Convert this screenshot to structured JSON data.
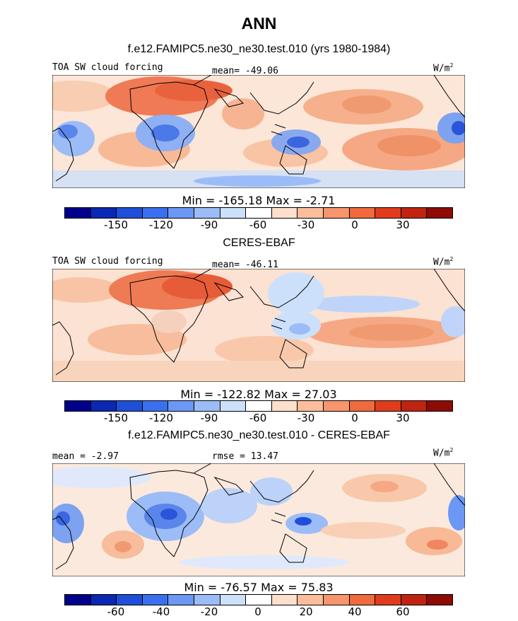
{
  "title": "ANN",
  "panels": [
    {
      "title": "f.e12.FAMIPC5.ne30_ne30.test.010 (yrs 1980-1984)",
      "left_label": "TOA SW cloud forcing",
      "center_label": "mean= -49.06",
      "units": "W/m",
      "units_exp": "2",
      "minmax": "Min = -165.18 Max =  -2.71",
      "ticks": [
        "-150",
        "-120",
        "-90",
        "-60",
        "-30",
        "0",
        "30"
      ]
    },
    {
      "title": "CERES-EBAF",
      "left_label": "TOA SW cloud forcing",
      "center_label": "mean= -46.11",
      "units": "W/m",
      "units_exp": "2",
      "minmax": "Min = -122.82 Max =  27.03",
      "ticks": [
        "-150",
        "-120",
        "-90",
        "-60",
        "-30",
        "0",
        "30"
      ]
    },
    {
      "title": "f.e12.FAMIPC5.ne30_ne30.test.010 - CERES-EBAF",
      "left_label": "mean =  -2.97",
      "center_label": "rmse =  13.47",
      "units": "W/m",
      "units_exp": "2",
      "minmax": "Min = -76.57 Max =  75.83",
      "ticks": [
        "-60",
        "-40",
        "-20",
        "0",
        "20",
        "40",
        "60"
      ]
    }
  ],
  "colorbar_colors": [
    "#00008b",
    "#0a28b4",
    "#1f4fd9",
    "#3a70f0",
    "#6b97f5",
    "#9cbcf7",
    "#cde0fb",
    "#ffffff",
    "#fde0cc",
    "#fbbd9c",
    "#f7956c",
    "#f06a3e",
    "#e03c1c",
    "#c02410",
    "#8e0a04"
  ]
}
